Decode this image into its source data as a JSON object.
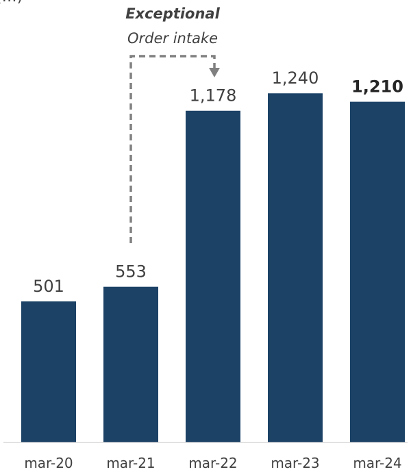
{
  "header_fragment": "(…)",
  "annotation": {
    "title": "Exceptional",
    "subtitle": "Order intake"
  },
  "chart_data": {
    "type": "bar",
    "categories": [
      "mar-20",
      "mar-21",
      "mar-22",
      "mar-23",
      "mar-24"
    ],
    "values": [
      501,
      553,
      1178,
      1240,
      1210
    ],
    "data_labels": [
      "501",
      "553",
      "1,178",
      "1,240",
      "1,210"
    ],
    "highlight_last_label": true,
    "bar_color": "#1c4266",
    "annotation_arrow_color": "#808080",
    "ylim": [
      0,
      1400
    ],
    "grid": false,
    "legend": "none",
    "title": "",
    "xlabel": "",
    "ylabel": ""
  }
}
